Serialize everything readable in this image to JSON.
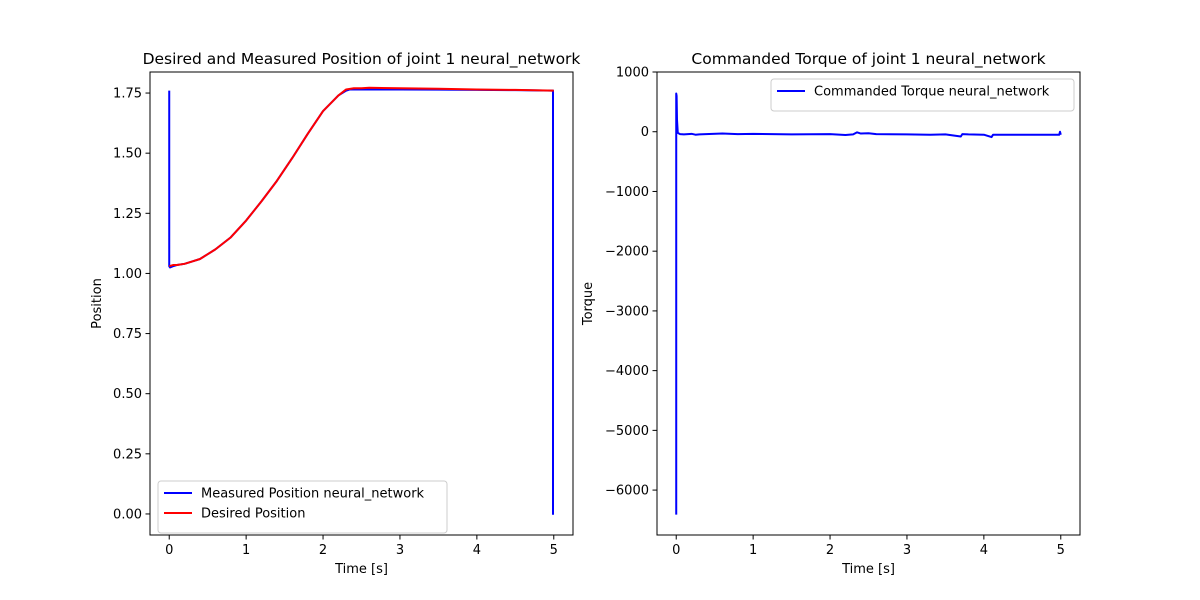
{
  "chart_data": [
    {
      "type": "line",
      "title": "Desired and Measured Position of joint 1 neural_network",
      "xlabel": "Time [s]",
      "ylabel": "Position",
      "xlim": [
        -0.25,
        5.25
      ],
      "ylim": [
        -0.0875,
        1.8375
      ],
      "xticks": [
        0,
        1,
        2,
        3,
        4,
        5
      ],
      "xtick_labels": [
        "0",
        "1",
        "2",
        "3",
        "4",
        "5"
      ],
      "yticks": [
        0.0,
        0.25,
        0.5,
        0.75,
        1.0,
        1.25,
        1.5,
        1.75
      ],
      "ytick_labels": [
        "0.00",
        "0.25",
        "0.50",
        "0.75",
        "1.00",
        "1.25",
        "1.50",
        "1.75"
      ],
      "legend": "lower-left",
      "grid": false,
      "series": [
        {
          "name": "Measured Position neural_network",
          "color": "#0000ff",
          "x": [
            0.0,
            0.0,
            0.01,
            0.05,
            0.1,
            0.2,
            0.3,
            0.4,
            0.5,
            0.6,
            0.7,
            0.8,
            1.0,
            1.2,
            1.4,
            1.6,
            1.8,
            2.0,
            2.2,
            2.3,
            2.35,
            2.4,
            2.5,
            3.0,
            3.5,
            4.0,
            4.5,
            4.98,
            4.99,
            4.99,
            5.0
          ],
          "y": [
            1.76,
            1.03,
            1.025,
            1.03,
            1.035,
            1.04,
            1.05,
            1.06,
            1.08,
            1.1,
            1.125,
            1.15,
            1.22,
            1.3,
            1.385,
            1.48,
            1.58,
            1.675,
            1.74,
            1.76,
            1.765,
            1.765,
            1.765,
            1.765,
            1.764,
            1.763,
            1.762,
            1.76,
            1.76,
            0.0,
            0.0
          ]
        },
        {
          "name": "Desired Position",
          "color": "#ff0000",
          "x": [
            0.0,
            0.05,
            0.1,
            0.2,
            0.3,
            0.4,
            0.5,
            0.6,
            0.7,
            0.8,
            1.0,
            1.2,
            1.4,
            1.6,
            1.8,
            2.0,
            2.2,
            2.3,
            2.4,
            2.5,
            2.6,
            3.0,
            3.5,
            4.0,
            4.5,
            5.0
          ],
          "y": [
            1.03,
            1.035,
            1.035,
            1.04,
            1.05,
            1.06,
            1.08,
            1.1,
            1.125,
            1.15,
            1.22,
            1.3,
            1.385,
            1.48,
            1.58,
            1.675,
            1.74,
            1.765,
            1.77,
            1.77,
            1.772,
            1.77,
            1.768,
            1.765,
            1.763,
            1.76
          ]
        }
      ]
    },
    {
      "type": "line",
      "title": "Commanded Torque of joint 1 neural_network",
      "xlabel": "Time [s]",
      "ylabel": "Torque",
      "xlim": [
        -0.25,
        5.25
      ],
      "ylim": [
        -6752,
        1000
      ],
      "xticks": [
        0,
        1,
        2,
        3,
        4,
        5
      ],
      "xtick_labels": [
        "0",
        "1",
        "2",
        "3",
        "4",
        "5"
      ],
      "yticks": [
        1000,
        0,
        -1000,
        -2000,
        -3000,
        -4000,
        -5000,
        -6000
      ],
      "ytick_labels": [
        "1000",
        "0",
        "−1000",
        "−2000",
        "−3000",
        "−4000",
        "−5000",
        "−6000"
      ],
      "legend": "upper-right",
      "grid": false,
      "series": [
        {
          "name": "Commanded Torque neural_network",
          "color": "#0000ff",
          "x": [
            0.0,
            0.0,
            0.005,
            0.01,
            0.02,
            0.05,
            0.1,
            0.2,
            0.25,
            0.3,
            0.6,
            0.8,
            1.0,
            1.5,
            2.0,
            2.2,
            2.3,
            2.35,
            2.4,
            2.5,
            2.6,
            3.0,
            3.3,
            3.5,
            3.7,
            3.72,
            3.8,
            4.0,
            4.1,
            4.12,
            4.5,
            4.98,
            4.99,
            5.0
          ],
          "y": [
            -6410,
            640,
            600,
            200,
            -20,
            -40,
            -45,
            -35,
            -50,
            -45,
            -30,
            -40,
            -35,
            -45,
            -40,
            -55,
            -45,
            -10,
            -30,
            -25,
            -40,
            -45,
            -50,
            -45,
            -80,
            -40,
            -45,
            -50,
            -90,
            -50,
            -50,
            -50,
            0,
            -50
          ]
        }
      ]
    }
  ]
}
